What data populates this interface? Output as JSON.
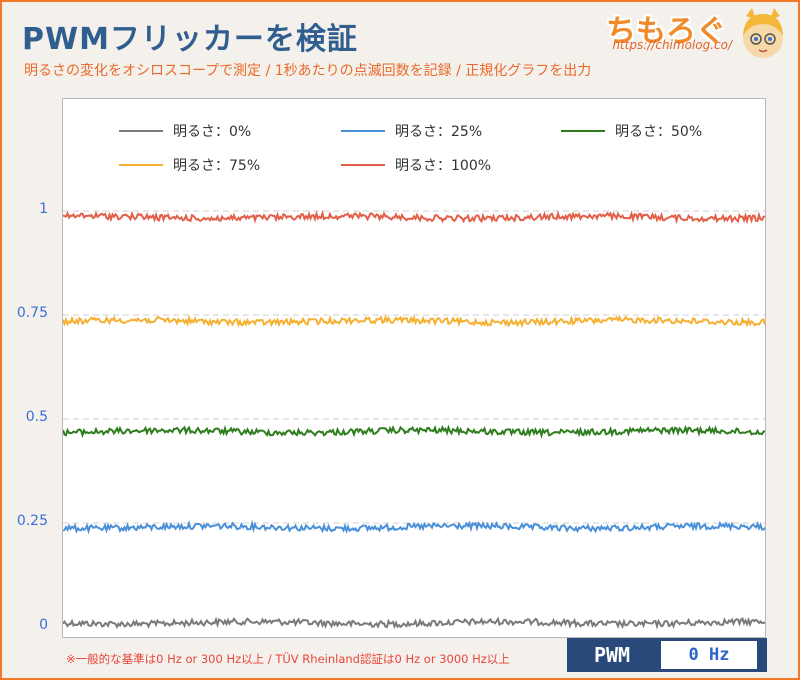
{
  "header": {
    "title": "PWMフリッカーを検証",
    "subtitle": "明るさの変化をオシロスコープで測定 / 1秒あたりの点滅回数を記録 / 正規化グラフを出力",
    "logo_text": "ちもろぐ",
    "logo_url": "https://chimolog.co/"
  },
  "footer": {
    "note": "※一般的な基準は0 Hz or 300 Hz以上 / TÜV Rheinland認証は0 Hz or 3000 Hz以上",
    "badge_label": "PWM",
    "badge_value": "0 Hz"
  },
  "colors": {
    "title": "#2f5e8f",
    "accent": "#f07a2a",
    "tick": "#3a6fd8",
    "badge_bg": "#29497a"
  },
  "chart_data": {
    "type": "line",
    "ylim": [
      0,
      1.2
    ],
    "yticks": [
      {
        "value": 0,
        "label": "0"
      },
      {
        "value": 0.25,
        "label": "0.25"
      },
      {
        "value": 0.5,
        "label": "0.5"
      },
      {
        "value": 0.75,
        "label": "0.75"
      },
      {
        "value": 1,
        "label": "1"
      }
    ],
    "grid": true,
    "legend_position": "top",
    "series": [
      {
        "name": "明るさ：0%",
        "level": 0.01,
        "color": "#7a7a7a"
      },
      {
        "name": "明るさ：25%",
        "level": 0.24,
        "color": "#4a90d9"
      },
      {
        "name": "明るさ：50%",
        "level": 0.47,
        "color": "#2e7d1e"
      },
      {
        "name": "明るさ：75%",
        "level": 0.735,
        "color": "#f5b032"
      },
      {
        "name": "明るさ：100%",
        "level": 0.985,
        "color": "#e2604a"
      }
    ]
  }
}
